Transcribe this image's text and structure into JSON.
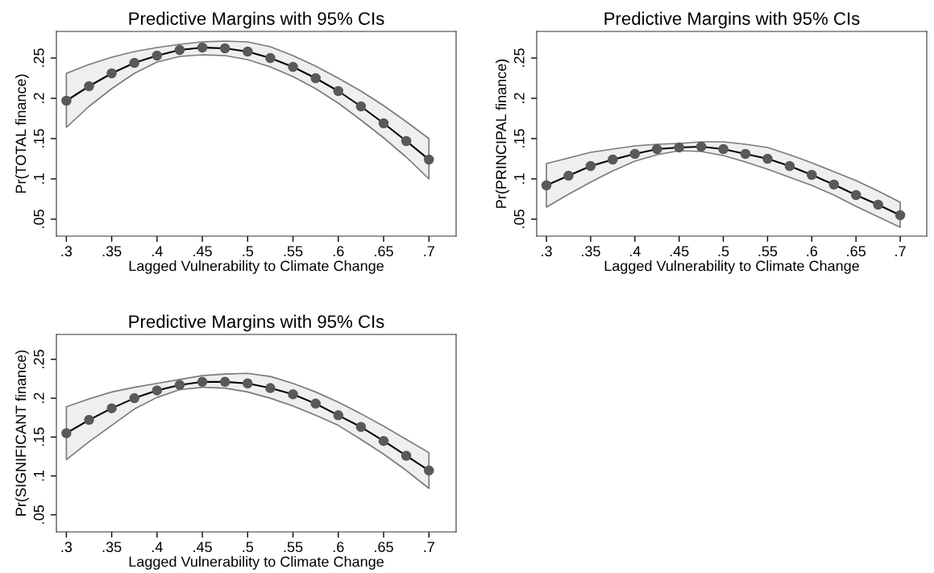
{
  "chart_data": [
    {
      "type": "line",
      "title": "Predictive Margins with 95% CIs",
      "xlabel": "Lagged Vulnerability to Climate Change",
      "ylabel": "Pr(TOTAL finance)",
      "marker": "circle",
      "line_style": "solid",
      "grid": false,
      "x": [
        0.3,
        0.325,
        0.35,
        0.375,
        0.4,
        0.425,
        0.45,
        0.475,
        0.5,
        0.525,
        0.55,
        0.575,
        0.6,
        0.625,
        0.65,
        0.675,
        0.7
      ],
      "xlim": [
        0.289,
        0.73
      ],
      "ylim": [
        0.029,
        0.283
      ],
      "xticks": [
        {
          "value": 0.3,
          "label": ".3"
        },
        {
          "value": 0.35,
          "label": ".35"
        },
        {
          "value": 0.4,
          "label": ".4"
        },
        {
          "value": 0.45,
          "label": ".45"
        },
        {
          "value": 0.5,
          "label": ".5"
        },
        {
          "value": 0.55,
          "label": ".55"
        },
        {
          "value": 0.6,
          "label": ".6"
        },
        {
          "value": 0.65,
          "label": ".65"
        },
        {
          "value": 0.7,
          "label": ".7"
        }
      ],
      "yticks": [
        {
          "value": 0.05,
          "label": ".05"
        },
        {
          "value": 0.1,
          "label": ".1"
        },
        {
          "value": 0.15,
          "label": ".15"
        },
        {
          "value": 0.2,
          "label": ".2"
        },
        {
          "value": 0.25,
          "label": ".25"
        }
      ],
      "series": [
        {
          "color": "#595959",
          "values": [
            0.197,
            0.215,
            0.231,
            0.244,
            0.253,
            0.26,
            0.263,
            0.262,
            0.258,
            0.25,
            0.239,
            0.225,
            0.209,
            0.19,
            0.169,
            0.147,
            0.124
          ],
          "lower": [
            0.164,
            0.19,
            0.212,
            0.231,
            0.245,
            0.252,
            0.254,
            0.253,
            0.248,
            0.239,
            0.227,
            0.212,
            0.194,
            0.173,
            0.151,
            0.127,
            0.1
          ],
          "upper": [
            0.231,
            0.242,
            0.251,
            0.258,
            0.263,
            0.267,
            0.27,
            0.271,
            0.27,
            0.264,
            0.253,
            0.24,
            0.225,
            0.209,
            0.191,
            0.171,
            0.15
          ]
        }
      ]
    },
    {
      "type": "line",
      "title": "Predictive Margins with 95% CIs",
      "xlabel": "Lagged Vulnerability to Climate Change",
      "ylabel": "Pr(PRINCIPAL finance)",
      "marker": "circle",
      "line_style": "solid",
      "grid": false,
      "x": [
        0.3,
        0.325,
        0.35,
        0.375,
        0.4,
        0.425,
        0.45,
        0.475,
        0.5,
        0.525,
        0.55,
        0.575,
        0.6,
        0.625,
        0.65,
        0.675,
        0.7
      ],
      "xlim": [
        0.289,
        0.73
      ],
      "ylim": [
        0.029,
        0.283
      ],
      "xticks": [
        {
          "value": 0.3,
          "label": ".3"
        },
        {
          "value": 0.35,
          "label": ".35"
        },
        {
          "value": 0.4,
          "label": ".4"
        },
        {
          "value": 0.45,
          "label": ".45"
        },
        {
          "value": 0.5,
          "label": ".5"
        },
        {
          "value": 0.55,
          "label": ".55"
        },
        {
          "value": 0.6,
          "label": ".6"
        },
        {
          "value": 0.65,
          "label": ".65"
        },
        {
          "value": 0.7,
          "label": ".7"
        }
      ],
      "yticks": [
        {
          "value": 0.05,
          "label": ".05"
        },
        {
          "value": 0.1,
          "label": ".1"
        },
        {
          "value": 0.15,
          "label": ".15"
        },
        {
          "value": 0.2,
          "label": ".2"
        },
        {
          "value": 0.25,
          "label": ".25"
        }
      ],
      "series": [
        {
          "color": "#595959",
          "values": [
            0.092,
            0.104,
            0.116,
            0.124,
            0.131,
            0.137,
            0.139,
            0.14,
            0.137,
            0.131,
            0.125,
            0.116,
            0.105,
            0.093,
            0.08,
            0.068,
            0.055
          ],
          "lower": [
            0.065,
            0.081,
            0.096,
            0.11,
            0.122,
            0.13,
            0.135,
            0.134,
            0.129,
            0.121,
            0.112,
            0.102,
            0.092,
            0.08,
            0.066,
            0.053,
            0.04
          ],
          "upper": [
            0.119,
            0.126,
            0.133,
            0.137,
            0.141,
            0.143,
            0.144,
            0.146,
            0.146,
            0.143,
            0.139,
            0.13,
            0.12,
            0.109,
            0.098,
            0.085,
            0.071
          ]
        }
      ]
    },
    {
      "type": "line",
      "title": "Predictive Margins with 95% CIs",
      "xlabel": "Lagged Vulnerability to Climate Change",
      "ylabel": "Pr(SIGNIFICANT finance)",
      "marker": "circle",
      "line_style": "solid",
      "grid": false,
      "x": [
        0.3,
        0.325,
        0.35,
        0.375,
        0.4,
        0.425,
        0.45,
        0.475,
        0.5,
        0.525,
        0.55,
        0.575,
        0.6,
        0.625,
        0.65,
        0.675,
        0.7
      ],
      "xlim": [
        0.289,
        0.73
      ],
      "ylim": [
        0.028,
        0.282
      ],
      "xticks": [
        {
          "value": 0.3,
          "label": ".3"
        },
        {
          "value": 0.35,
          "label": ".35"
        },
        {
          "value": 0.4,
          "label": ".4"
        },
        {
          "value": 0.45,
          "label": ".45"
        },
        {
          "value": 0.5,
          "label": ".5"
        },
        {
          "value": 0.55,
          "label": ".55"
        },
        {
          "value": 0.6,
          "label": ".6"
        },
        {
          "value": 0.65,
          "label": ".65"
        },
        {
          "value": 0.7,
          "label": ".7"
        }
      ],
      "yticks": [
        {
          "value": 0.05,
          "label": ".05"
        },
        {
          "value": 0.1,
          "label": ".1"
        },
        {
          "value": 0.15,
          "label": ".15"
        },
        {
          "value": 0.2,
          "label": ".2"
        },
        {
          "value": 0.25,
          "label": ".25"
        }
      ],
      "series": [
        {
          "color": "#595959",
          "values": [
            0.155,
            0.172,
            0.187,
            0.2,
            0.21,
            0.217,
            0.221,
            0.221,
            0.219,
            0.213,
            0.205,
            0.193,
            0.178,
            0.163,
            0.145,
            0.126,
            0.107
          ],
          "lower": [
            0.121,
            0.144,
            0.165,
            0.186,
            0.201,
            0.211,
            0.214,
            0.213,
            0.208,
            0.2,
            0.19,
            0.178,
            0.165,
            0.147,
            0.128,
            0.107,
            0.084
          ],
          "upper": [
            0.189,
            0.199,
            0.208,
            0.214,
            0.219,
            0.224,
            0.229,
            0.231,
            0.232,
            0.228,
            0.219,
            0.208,
            0.195,
            0.18,
            0.164,
            0.147,
            0.13
          ]
        }
      ]
    }
  ]
}
